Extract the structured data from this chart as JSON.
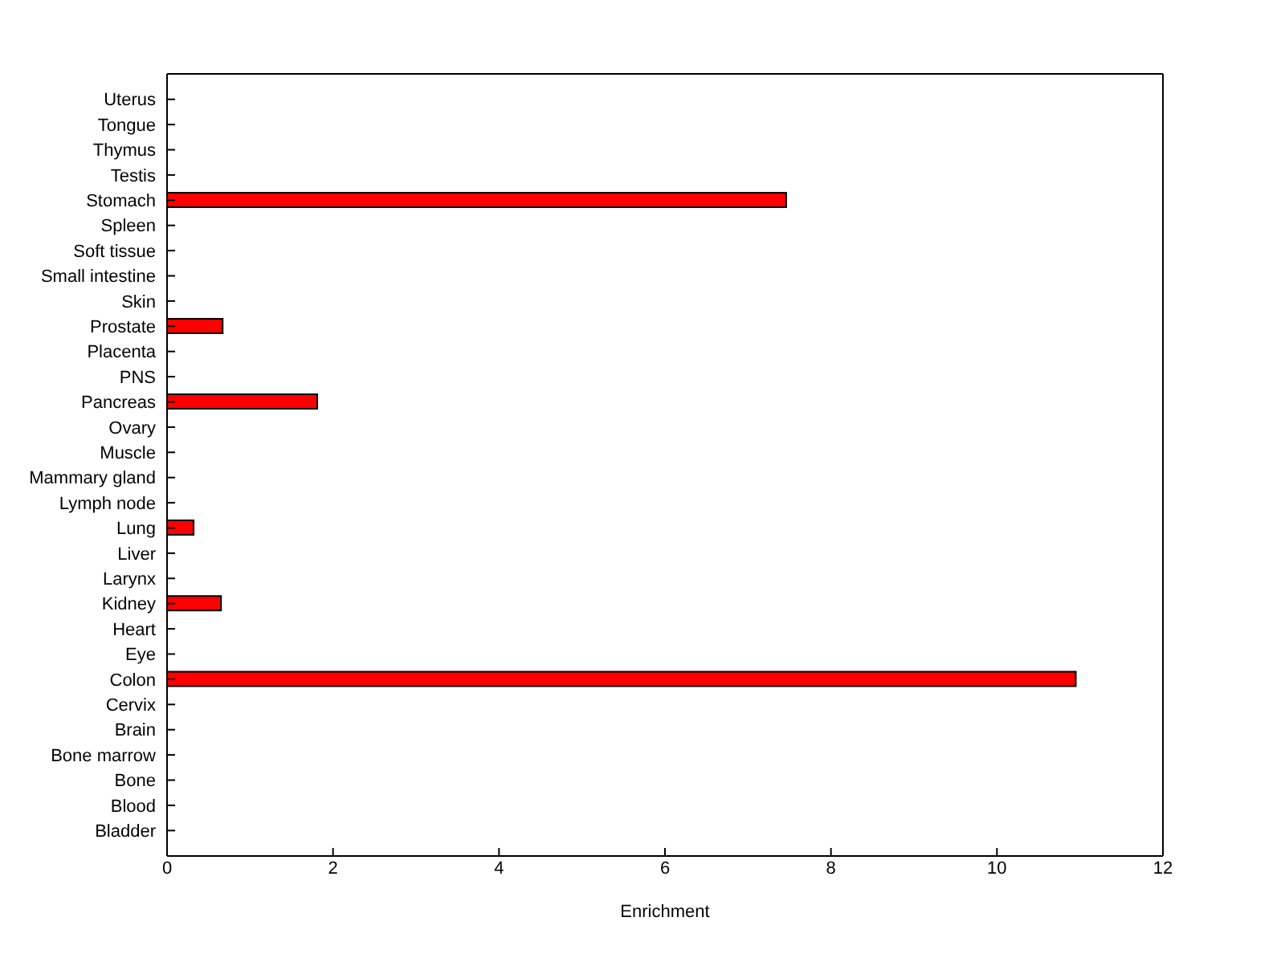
{
  "chart_data": {
    "type": "bar",
    "orientation": "horizontal",
    "xlabel": "Enrichment",
    "categories": [
      "Uterus",
      "Tongue",
      "Thymus",
      "Testis",
      "Stomach",
      "Spleen",
      "Soft tissue",
      "Small intestine",
      "Skin",
      "Prostate",
      "Placenta",
      "PNS",
      "Pancreas",
      "Ovary",
      "Muscle",
      "Mammary gland",
      "Lymph node",
      "Lung",
      "Liver",
      "Larynx",
      "Kidney",
      "Heart",
      "Eye",
      "Colon",
      "Cervix",
      "Brain",
      "Bone marrow",
      "Bone",
      "Blood",
      "Bladder"
    ],
    "values": [
      0,
      0,
      0,
      0,
      7.46,
      0,
      0,
      0,
      0,
      0.67,
      0,
      0,
      1.81,
      0,
      0,
      0,
      0,
      0.32,
      0,
      0,
      0.65,
      0,
      0,
      10.95,
      0,
      0,
      0,
      0,
      0,
      0
    ],
    "color": "#ff0000",
    "xlim": [
      0,
      12
    ],
    "xticks": [
      0,
      2,
      4,
      6,
      8,
      10,
      12
    ],
    "grid": false,
    "legend": false
  }
}
